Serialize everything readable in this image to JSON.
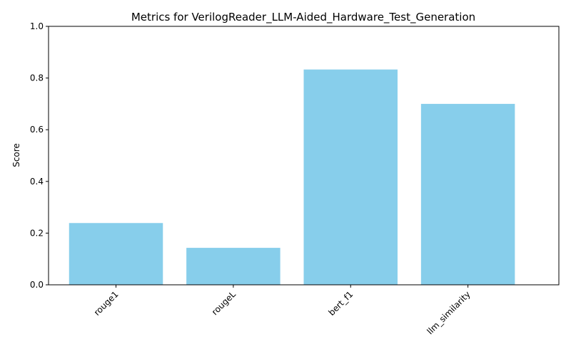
{
  "chart_data": {
    "type": "bar",
    "title": "Metrics for VerilogReader_LLM-Aided_Hardware_Test_Generation",
    "xlabel": "",
    "ylabel": "Score",
    "categories": [
      "rouge1",
      "rougeL",
      "bert_f1",
      "llm_similarity"
    ],
    "values": [
      0.239,
      0.143,
      0.833,
      0.7
    ],
    "ylim": [
      0,
      1.0
    ],
    "yticks": [
      "0.0",
      "0.2",
      "0.4",
      "0.6",
      "0.8",
      "1.0"
    ],
    "bar_color": "#87ceeb",
    "grid": false,
    "legend": "none"
  }
}
